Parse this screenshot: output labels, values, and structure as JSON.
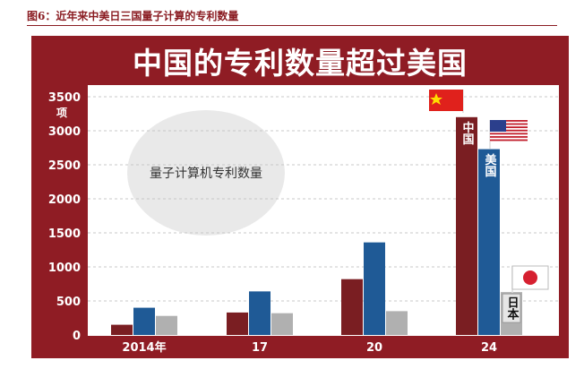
{
  "caption": "图6：近年来中美日三国量子计算的专利数量",
  "chart_data": {
    "type": "bar",
    "title": "中国的专利数量超过美国",
    "ylabel": "项",
    "ylim": [
      0,
      3500
    ],
    "yticks": [
      0,
      500,
      1000,
      1500,
      2000,
      2500,
      3000,
      3500
    ],
    "categories": [
      "2014年",
      "17",
      "20",
      "24"
    ],
    "series": [
      {
        "name": "中国",
        "color": "#7a1e22",
        "values": [
          150,
          330,
          820,
          3200
        ]
      },
      {
        "name": "美国",
        "color": "#1f5a96",
        "values": [
          400,
          640,
          1360,
          2730
        ]
      },
      {
        "name": "日本",
        "color": "#b0b0b0",
        "values": [
          280,
          320,
          350,
          630
        ]
      }
    ],
    "bar_labels": [
      "中国",
      "美国",
      "日本"
    ],
    "annotation": "量子计算机专利数量",
    "grid": true
  },
  "colors": {
    "panel": "#8f1c24",
    "plot_bg": "#ffffff",
    "grid": "#c8c8c8"
  }
}
